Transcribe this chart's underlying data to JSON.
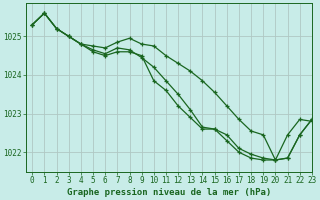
{
  "title": "Graphe pression niveau de la mer (hPa)",
  "bg_color": "#c8ece8",
  "grid_color": "#b0c8c4",
  "line_color": "#1a6620",
  "xlim": [
    -0.5,
    23
  ],
  "ylim": [
    1021.5,
    1025.85
  ],
  "yticks": [
    1022,
    1023,
    1024,
    1025
  ],
  "xticks": [
    0,
    1,
    2,
    3,
    4,
    5,
    6,
    7,
    8,
    9,
    10,
    11,
    12,
    13,
    14,
    15,
    16,
    17,
    18,
    19,
    20,
    21,
    22,
    23
  ],
  "series": [
    [
      1025.3,
      1025.6,
      1025.2,
      1025.0,
      1024.8,
      1024.75,
      1024.7,
      1024.85,
      1024.95,
      1024.8,
      1024.75,
      1024.5,
      1024.3,
      1024.1,
      1023.85,
      1023.55,
      1023.2,
      1022.85,
      1022.55,
      1022.45,
      1021.8,
      1021.85,
      1022.45,
      1022.85
    ],
    [
      1025.3,
      1025.6,
      1025.2,
      1025.0,
      1024.8,
      1024.6,
      1024.5,
      1024.6,
      1024.6,
      1024.5,
      1023.85,
      1023.6,
      1023.2,
      1022.9,
      1022.6,
      1022.6,
      1022.45,
      1022.1,
      1021.95,
      1021.85,
      1021.8,
      1021.85,
      1022.45,
      1022.85
    ],
    [
      1025.3,
      1025.6,
      1025.2,
      1025.0,
      1024.8,
      1024.65,
      1024.55,
      1024.7,
      1024.65,
      1024.45,
      1024.2,
      1023.85,
      1023.5,
      1023.1,
      1022.65,
      1022.6,
      1022.3,
      1022.0,
      1021.85,
      1021.8,
      1021.8,
      1022.45,
      1022.85,
      1022.8
    ]
  ],
  "title_fontsize": 6.5,
  "tick_fontsize": 5.5
}
